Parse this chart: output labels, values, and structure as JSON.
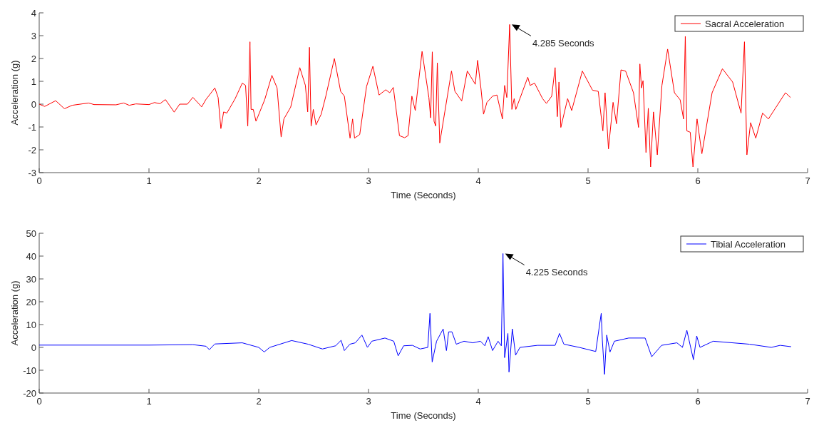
{
  "chart_data": [
    {
      "type": "line",
      "xlabel": "Time (Seconds)",
      "ylabel": "Acceleration (g)",
      "xlim": [
        0,
        7
      ],
      "xticks": [
        0,
        1,
        2,
        3,
        4,
        5,
        6,
        7
      ],
      "ylim": [
        -3,
        4
      ],
      "yticks": [
        -3,
        -2,
        -1,
        0,
        1,
        2,
        3,
        4
      ],
      "grid": false,
      "legend": "top right",
      "marker": "none",
      "line_style": "solid",
      "annotations": [
        {
          "text": "4.285 Seconds",
          "x": 4.285,
          "y": 3.49
        }
      ],
      "series": [
        {
          "name": "Sacral Acceleration",
          "color": "#ff0000",
          "x": [
            0,
            0.05,
            0.15,
            0.23,
            0.3,
            0.45,
            0.5,
            0.7,
            0.77,
            0.82,
            0.88,
            1.0,
            1.05,
            1.1,
            1.15,
            1.23,
            1.28,
            1.35,
            1.4,
            1.48,
            1.517,
            1.6,
            1.63,
            1.655,
            1.68,
            1.71,
            1.785,
            1.85,
            1.88,
            1.9,
            1.92,
            1.93,
            1.95,
            1.975,
            2.054,
            2.12,
            2.167,
            2.204,
            2.229,
            2.291,
            2.374,
            2.425,
            2.446,
            2.462,
            2.477,
            2.497,
            2.522,
            2.569,
            2.611,
            2.689,
            2.746,
            2.78,
            2.832,
            2.855,
            2.873,
            2.92,
            2.982,
            3.04,
            3.096,
            3.157,
            3.193,
            3.226,
            3.282,
            3.329,
            3.36,
            3.395,
            3.426,
            3.488,
            3.55,
            3.566,
            3.581,
            3.597,
            3.612,
            3.627,
            3.649,
            3.695,
            3.756,
            3.787,
            3.849,
            3.9,
            3.973,
            3.994,
            4.025,
            4.048,
            4.079,
            4.13,
            4.17,
            4.22,
            4.24,
            4.26,
            4.286,
            4.306,
            4.327,
            4.342,
            4.379,
            4.451,
            4.472,
            4.513,
            4.586,
            4.621,
            4.669,
            4.7,
            4.72,
            4.735,
            4.752,
            4.814,
            4.851,
            4.948,
            5.041,
            5.093,
            5.135,
            5.155,
            5.186,
            5.228,
            5.259,
            5.3,
            5.342,
            5.414,
            5.46,
            5.472,
            5.487,
            5.501,
            5.528,
            5.549,
            5.57,
            5.596,
            5.631,
            5.673,
            5.725,
            5.787,
            5.839,
            5.87,
            5.886,
            5.9,
            5.931,
            5.956,
            5.993,
            6.037,
            6.13,
            6.224,
            6.317,
            6.394,
            6.425,
            6.447,
            6.481,
            6.528,
            6.59,
            6.643,
            6.798,
            6.845
          ],
          "values": [
            0,
            -0.1,
            0.15,
            -0.2,
            -0.05,
            0.05,
            -0.02,
            -0.03,
            0.05,
            -0.05,
            0.01,
            -0.02,
            0.07,
            0.02,
            0.2,
            -0.35,
            0,
            0,
            0.3,
            -0.12,
            0.19,
            0.71,
            0.29,
            -1.07,
            -0.34,
            -0.39,
            0.24,
            0.92,
            0.82,
            -0.96,
            2.73,
            -0.23,
            -0.23,
            -0.75,
            0.19,
            1.26,
            0.71,
            -1.44,
            -0.65,
            -0.13,
            1.6,
            0.82,
            -0.34,
            2.49,
            -0.96,
            -0.23,
            -0.91,
            -0.44,
            0.35,
            2.0,
            0.56,
            0.35,
            -1.49,
            -0.65,
            -1.49,
            -1.33,
            0.77,
            1.66,
            0.4,
            0.63,
            0.5,
            0.73,
            -1.38,
            -1.47,
            -1.38,
            0.35,
            -0.28,
            2.31,
            0.29,
            -0.6,
            2.29,
            -0.75,
            -0.96,
            1.81,
            -1.7,
            -0.34,
            1.45,
            0.56,
            0.14,
            1.45,
            0.87,
            1.92,
            0.66,
            -0.44,
            0.08,
            0.35,
            0.4,
            -0.65,
            0.82,
            0.29,
            3.49,
            -0.23,
            0.24,
            -0.23,
            0.24,
            1.18,
            0.82,
            0.92,
            0.24,
            0.03,
            0.35,
            1.6,
            -0.55,
            0.97,
            -1.02,
            0.24,
            -0.28,
            1.45,
            0.61,
            0.56,
            -1.17,
            0.5,
            -1.96,
            0.08,
            -0.86,
            1.5,
            1.45,
            0.5,
            -1.02,
            1.76,
            0.71,
            1.03,
            -2.12,
            -0.18,
            -2.75,
            -0.34,
            -2.22,
            0.82,
            2.41,
            0.5,
            0.19,
            -0.65,
            2.97,
            -1.17,
            -1.23,
            -2.75,
            -0.65,
            -2.17,
            0.5,
            1.55,
            0.97,
            -0.39,
            2.73,
            -2.22,
            -0.81,
            -1.49,
            -0.39,
            -0.65,
            0.5,
            0.29
          ]
        }
      ]
    },
    {
      "type": "line",
      "xlabel": "Time (Seconds)",
      "ylabel": "Acceleration (g)",
      "xlim": [
        0,
        7
      ],
      "xticks": [
        0,
        1,
        2,
        3,
        4,
        5,
        6,
        7
      ],
      "ylim": [
        -20,
        50
      ],
      "yticks": [
        -20,
        -10,
        0,
        10,
        20,
        30,
        40,
        50
      ],
      "grid": false,
      "legend": "top right",
      "marker": "none",
      "line_style": "solid",
      "annotations": [
        {
          "text": "4.225 Seconds",
          "x": 4.225,
          "y": 41.1
        }
      ],
      "series": [
        {
          "name": "Tibial Acceleration",
          "color": "#0000ff",
          "x": [
            0,
            0.5,
            1.0,
            1.4,
            1.52,
            1.55,
            1.6,
            1.85,
            2.0,
            2.05,
            2.1,
            2.3,
            2.45,
            2.58,
            2.7,
            2.75,
            2.78,
            2.83,
            2.88,
            2.94,
            2.99,
            3.03,
            3.15,
            3.23,
            3.27,
            3.32,
            3.4,
            3.47,
            3.54,
            3.56,
            3.58,
            3.62,
            3.68,
            3.71,
            3.73,
            3.76,
            3.8,
            3.87,
            3.95,
            4.02,
            4.06,
            4.09,
            4.13,
            4.18,
            4.21,
            4.225,
            4.24,
            4.27,
            4.28,
            4.31,
            4.34,
            4.38,
            4.54,
            4.7,
            4.74,
            4.78,
            4.92,
            5.07,
            5.12,
            5.13,
            5.15,
            5.17,
            5.2,
            5.24,
            5.37,
            5.52,
            5.58,
            5.67,
            5.81,
            5.86,
            5.9,
            5.96,
            5.99,
            6.02,
            6.14,
            6.47,
            6.67,
            6.75,
            6.85
          ],
          "values": [
            1,
            1,
            1,
            1.2,
            0.5,
            -1,
            1.5,
            2,
            0,
            -2,
            0,
            3,
            1.4,
            -0.7,
            0.7,
            3.1,
            -1.4,
            1.4,
            2,
            5.4,
            0,
            2.7,
            4.1,
            2.7,
            -3.7,
            0.7,
            0.9,
            -0.7,
            0,
            14.9,
            -6.4,
            2.7,
            8.1,
            -1.4,
            6.8,
            6.8,
            1.4,
            2.7,
            2,
            2.7,
            0.7,
            4.7,
            -1.4,
            2.7,
            0.7,
            41.1,
            -4.5,
            6.1,
            -10.8,
            8.1,
            -3.4,
            0,
            0.9,
            0.9,
            6.1,
            1.4,
            0,
            -1.8,
            14.9,
            3.4,
            -11.8,
            5.4,
            -2,
            2.7,
            4.1,
            4.1,
            -4.1,
            0.9,
            2,
            0,
            7.5,
            -5.4,
            5,
            0,
            2.7,
            1.4,
            0,
            0.9,
            0.3
          ]
        }
      ]
    }
  ]
}
